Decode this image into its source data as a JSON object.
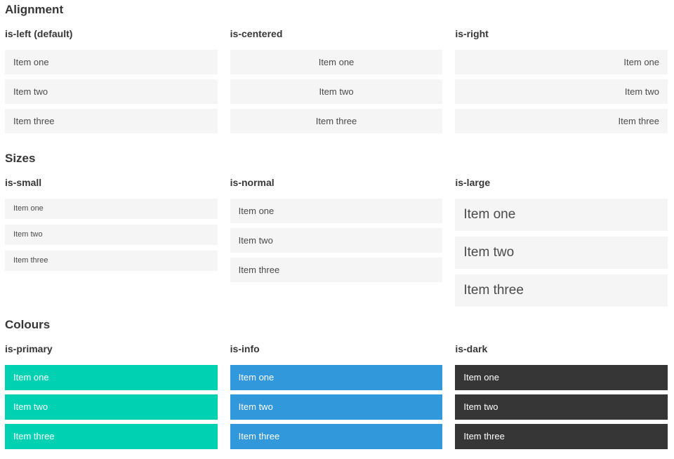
{
  "colors": {
    "primary": "#00d1b2",
    "info": "#3298dc",
    "dark": "#363636",
    "item_background": "#f5f5f5",
    "item_text": "#4a4a4a",
    "heading_text": "#363636",
    "colored_item_text": "#ffffff"
  },
  "sections": [
    {
      "title": "Alignment",
      "columns": [
        {
          "header": "is-left (default)",
          "items": [
            "Item one",
            "Item two",
            "Item three"
          ]
        },
        {
          "header": "is-centered",
          "items": [
            "Item one",
            "Item two",
            "Item three"
          ]
        },
        {
          "header": "is-right",
          "items": [
            "Item one",
            "Item two",
            "Item three"
          ]
        }
      ]
    },
    {
      "title": "Sizes",
      "columns": [
        {
          "header": "is-small",
          "items": [
            "Item one",
            "Item two",
            "Item three"
          ]
        },
        {
          "header": "is-normal",
          "items": [
            "Item one",
            "Item two",
            "Item three"
          ]
        },
        {
          "header": "is-large",
          "items": [
            "Item one",
            "Item two",
            "Item three"
          ]
        }
      ]
    },
    {
      "title": "Colours",
      "columns": [
        {
          "header": "is-primary",
          "items": [
            "Item one",
            "Item two",
            "Item three"
          ]
        },
        {
          "header": "is-info",
          "items": [
            "Item one",
            "Item two",
            "Item three"
          ]
        },
        {
          "header": "is-dark",
          "items": [
            "Item one",
            "Item two",
            "Item three"
          ]
        }
      ]
    }
  ]
}
